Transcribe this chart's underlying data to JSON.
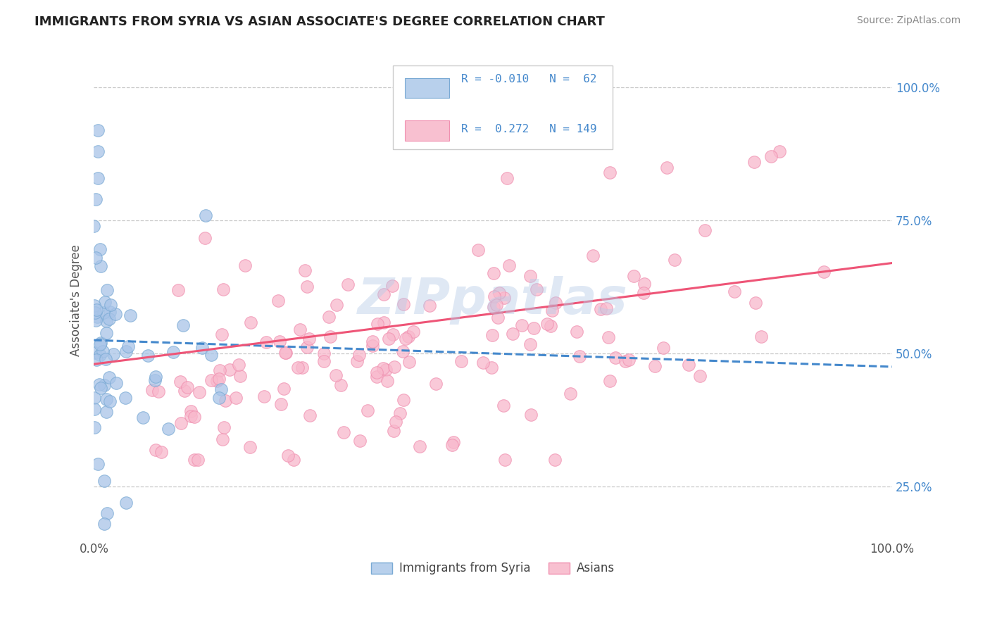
{
  "title": "IMMIGRANTS FROM SYRIA VS ASIAN ASSOCIATE'S DEGREE CORRELATION CHART",
  "source_text": "Source: ZipAtlas.com",
  "ylabel": "Associate's Degree",
  "watermark": "ZIPpatlas",
  "xmin": 0.0,
  "xmax": 1.0,
  "ymin": 0.15,
  "ymax": 1.05,
  "ytick_positions": [
    0.25,
    0.5,
    0.75,
    1.0
  ],
  "ytick_labels": [
    "25.0%",
    "50.0%",
    "75.0%",
    "100.0%"
  ],
  "xtick_positions": [
    0.0,
    1.0
  ],
  "xtick_labels": [
    "0.0%",
    "100.0%"
  ],
  "grid_color": "#c8c8c8",
  "background_color": "#ffffff",
  "scatter_blue_fill": "#a8c4e8",
  "scatter_blue_edge": "#7aaad4",
  "scatter_pink_fill": "#f8b8cc",
  "scatter_pink_edge": "#f090b0",
  "line_blue_color": "#4488cc",
  "line_pink_color": "#ee5577",
  "title_color": "#222222",
  "source_color": "#888888",
  "right_tick_color": "#4488cc",
  "axis_label_color": "#555555",
  "legend_border_color": "#cccccc",
  "legend_box_blue_fill": "#b8d0ec",
  "legend_box_pink_fill": "#f8c0d0",
  "legend_text_color": "#333333",
  "legend_rn_color": "#4488cc"
}
